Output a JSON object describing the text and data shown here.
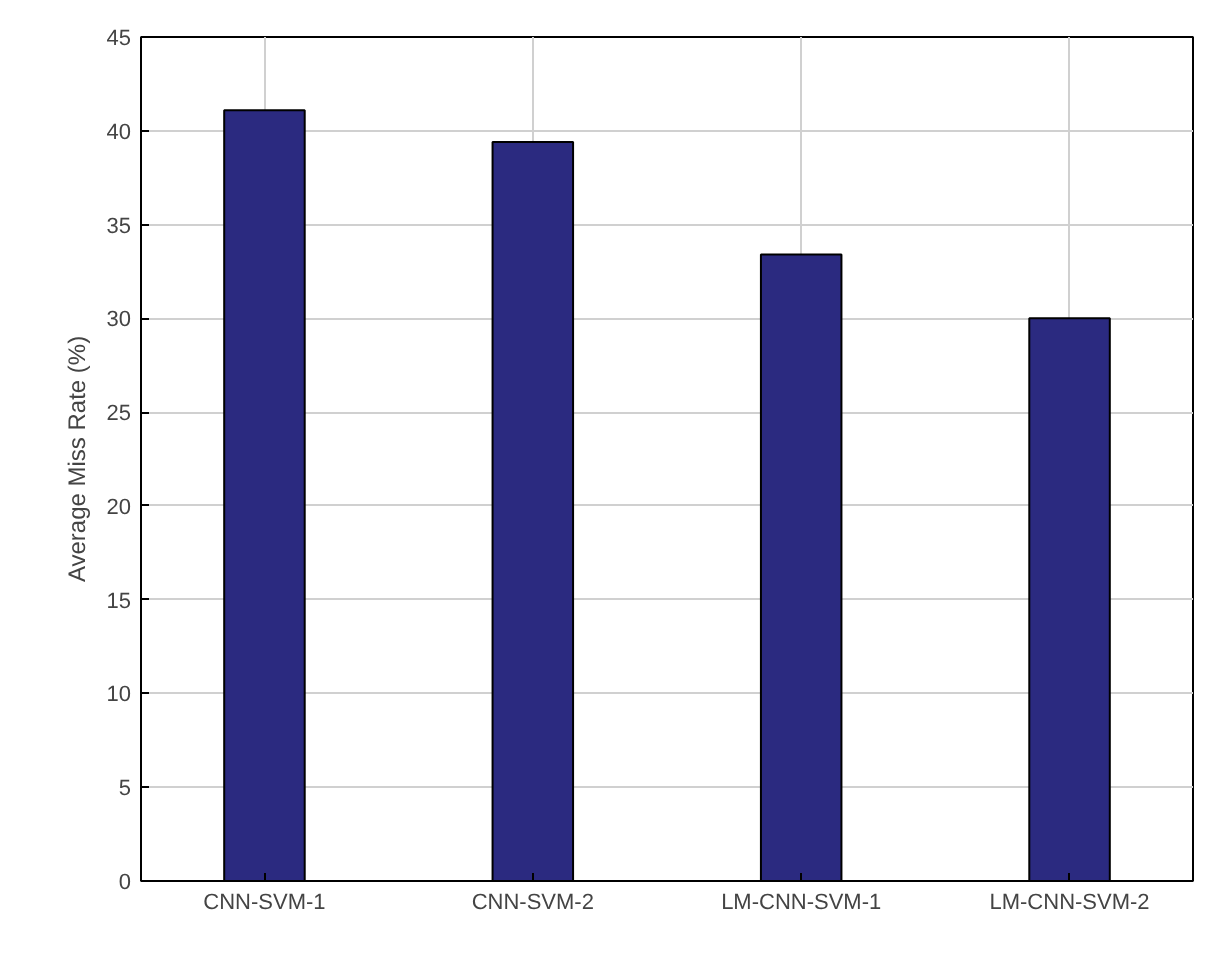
{
  "chart_data": {
    "type": "bar",
    "ylabel": "Average Miss Rate (%)",
    "categories": [
      "CNN-SVM-1",
      "CNN-SVM-2",
      "LM-CNN-SVM-1",
      "LM-CNN-SVM-2"
    ],
    "values": [
      41.1,
      39.4,
      33.4,
      30.0
    ],
    "color": "#2b2a80",
    "ylim": [
      0,
      45
    ],
    "yticks": [
      0,
      5,
      10,
      15,
      20,
      25,
      30,
      35,
      40,
      45
    ],
    "grid": true
  }
}
